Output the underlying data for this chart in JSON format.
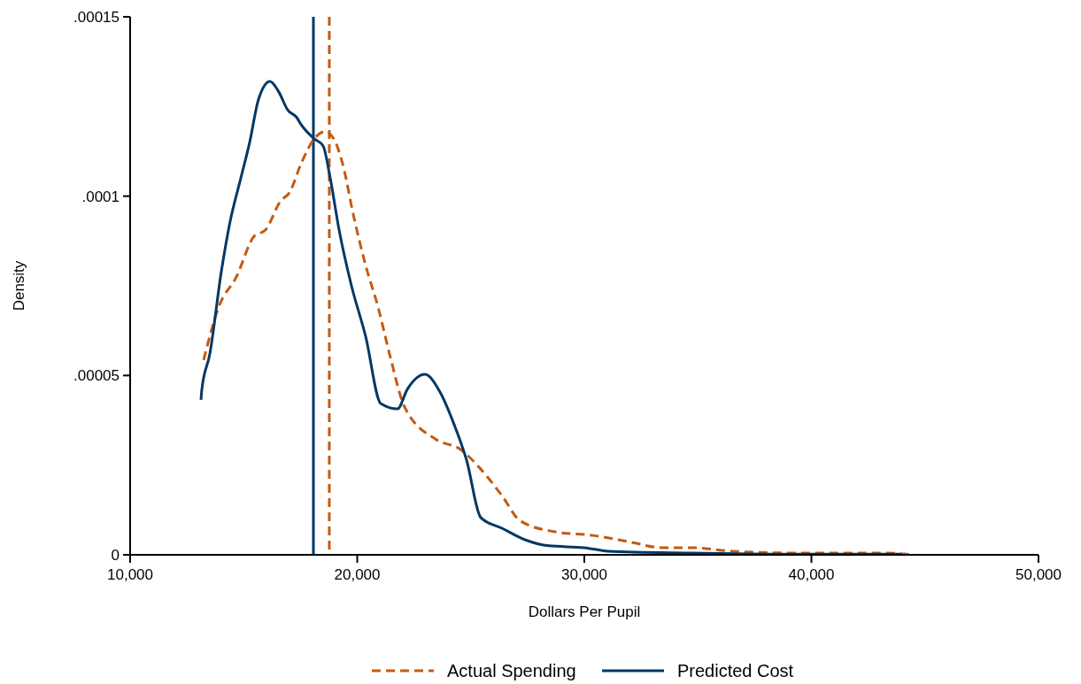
{
  "chart_data": {
    "type": "line",
    "xlabel": "Dollars Per Pupil",
    "ylabel": "Density",
    "xlim": [
      10000,
      50000
    ],
    "xticks": [
      {
        "value": 10000,
        "label": "10,000"
      },
      {
        "value": 20000,
        "label": "20,000"
      },
      {
        "value": 30000,
        "label": "30,000"
      },
      {
        "value": 40000,
        "label": "40,000"
      },
      {
        "value": 50000,
        "label": "50,000"
      }
    ],
    "ylim": [
      0,
      0.00015
    ],
    "yticks": [
      {
        "value": 0,
        "label": "0"
      },
      {
        "value": 5e-05,
        "label": ".00005"
      },
      {
        "value": 0.0001,
        "label": ".0001"
      },
      {
        "value": 0.00015,
        "label": ".00015"
      }
    ],
    "grid": false,
    "legend": "bottom",
    "marker": "none",
    "series": [
      {
        "name": "Actual Spending",
        "color": "#c55a11",
        "line_style": "dashed",
        "x": [
          13236,
          13899,
          14678,
          15458,
          15965,
          16628,
          17017,
          17524,
          18109,
          18577,
          18967,
          19357,
          19863,
          20370,
          20916,
          21423,
          22086,
          23489,
          24542,
          25438,
          26374,
          27154,
          28713,
          30390,
          32066,
          33392,
          34678,
          36510,
          39356,
          43255,
          44542
        ],
        "values": [
          5.43e-05,
          6.91e-05,
          7.75e-05,
          8.88e-05,
          9.06e-05,
          9.87e-05,
          0.000101,
          0.000109,
          0.000116,
          0.000118,
          0.000116,
          0.000109,
          9.38e-05,
          8.07e-05,
          6.91e-05,
          5.6e-05,
          4.12e-05,
          3.21e-05,
          2.94e-05,
          2.39e-05,
          1.65e-05,
          9.6e-06,
          6.4e-06,
          5.4e-06,
          3.5e-06,
          2e-06,
          2e-06,
          1e-06,
          5e-07,
          5e-07,
          0
        ]
      },
      {
        "name": "Predicted Cost",
        "color": "#003865",
        "line_style": "solid",
        "x": [
          13119,
          13158,
          13509,
          14016,
          14405,
          14873,
          15263,
          15653,
          16160,
          16550,
          16940,
          17329,
          17524,
          18109,
          18499,
          18811,
          19201,
          19747,
          20370,
          21033,
          21774,
          22203,
          22982,
          23645,
          24269,
          24815,
          25438,
          26374,
          27388,
          28440,
          30000,
          31052,
          34678,
          39356,
          43956
        ],
        "values": [
          4.32e-05,
          4.61e-05,
          5.6e-05,
          7.9e-05,
          9.3e-05,
          0.000105,
          0.000115,
          0.000127,
          0.000132,
          0.000129,
          0.000124,
          0.000122,
          0.00012,
          0.000116,
          0.000114,
          0.000105,
          9.06e-05,
          7.5e-05,
          6.09e-05,
          4.22e-05,
          4.07e-05,
          4.61e-05,
          5.03e-05,
          4.54e-05,
          3.63e-05,
          2.64e-05,
          1.04e-05,
          7.4e-06,
          4.2e-06,
          2.5e-06,
          2e-06,
          1e-06,
          5e-07,
          2e-07,
          2e-07
        ]
      }
    ],
    "ref_lines": [
      {
        "axis": "x",
        "value": 18070,
        "color": "#003865",
        "line_style": "solid"
      },
      {
        "axis": "x",
        "value": 18770,
        "color": "#c55a11",
        "line_style": "dashed"
      }
    ]
  }
}
